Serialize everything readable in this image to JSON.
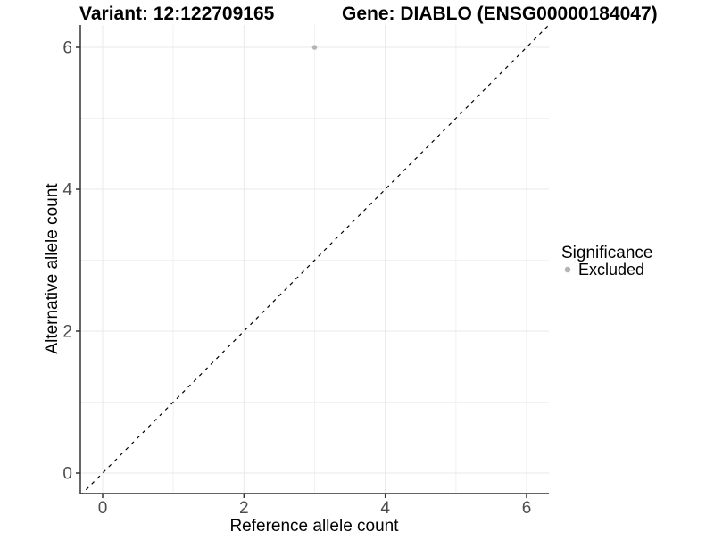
{
  "header": {
    "variant_title": "Variant: 12:122709165",
    "gene_title": "Gene: DIABLO (ENSG00000184047)"
  },
  "chart_data": {
    "type": "scatter",
    "title_left": "Variant: 12:122709165",
    "title_right": "Gene: DIABLO (ENSG00000184047)",
    "xlabel": "Reference allele count",
    "ylabel": "Alternative allele count",
    "xlim": [
      -0.32,
      6.32
    ],
    "ylim": [
      -0.29,
      6.31
    ],
    "x_ticks": [
      0,
      2,
      4,
      6
    ],
    "y_ticks": [
      0,
      2,
      4,
      6
    ],
    "x_minor_ticks": [
      1,
      3,
      5
    ],
    "y_minor_ticks": [
      1,
      3,
      5
    ],
    "grid": "on",
    "points": [
      {
        "x": 3,
        "y": 6,
        "series": "Excluded",
        "color": "#b5b5b5"
      }
    ],
    "reference_line": {
      "kind": "identity y = x",
      "style": "dashed",
      "color": "#000000"
    },
    "legend": {
      "title": "Significance",
      "position": "right",
      "items": [
        {
          "label": "Excluded",
          "color": "#b5b5b5"
        }
      ]
    }
  },
  "colors": {
    "background": "#ffffff",
    "grid_major": "#e8e8e8",
    "grid_minor": "#f2f2f2",
    "axis_line": "#333333",
    "tick_label": "#4d4d4d",
    "point": "#b5b5b5",
    "dashed_line": "#000000"
  }
}
